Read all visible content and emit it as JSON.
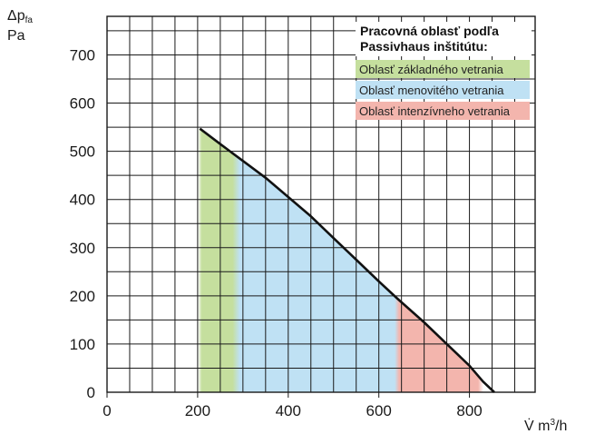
{
  "chart_data": {
    "type": "area",
    "y_axis": {
      "label": "Δp",
      "label_sub": "fa",
      "unit": "Pa",
      "ticks": [
        0,
        100,
        200,
        300,
        400,
        500,
        600,
        700
      ]
    },
    "x_axis": {
      "label": "V̇ m³/h",
      "label_main": "V̇ m",
      "label_sup": "3",
      "label_tail": "/h",
      "ticks": [
        0,
        200,
        400,
        600,
        800
      ]
    },
    "xlim": [
      0,
      945
    ],
    "ylim": [
      0,
      780
    ],
    "grid": true,
    "curve": {
      "x": [
        205,
        250,
        300,
        350,
        400,
        450,
        500,
        550,
        600,
        640,
        700,
        750,
        800,
        830,
        855
      ],
      "y": [
        547,
        515,
        480,
        445,
        405,
        365,
        320,
        275,
        230,
        195,
        145,
        100,
        55,
        22,
        0
      ]
    },
    "legend": {
      "position": "top-right",
      "title_lines": [
        "Pracovná oblasť podľa",
        "Passivhaus inštitútu:"
      ],
      "items": [
        {
          "label": "Oblasť základného vetrania",
          "color": "#c5df9e"
        },
        {
          "label": "Oblasť menovitého vetrania",
          "color": "#bfe1f4"
        },
        {
          "label": "Oblasť intenzívneho vetrania",
          "color": "#f3b5ad"
        }
      ]
    },
    "regions": [
      {
        "x_start": 205,
        "x_end": 285,
        "color": "#c5df9e"
      },
      {
        "x_start": 285,
        "x_end": 640,
        "color": "#bfe1f4"
      },
      {
        "x_start": 640,
        "x_end": 825,
        "color": "#f3b5ad"
      }
    ]
  }
}
